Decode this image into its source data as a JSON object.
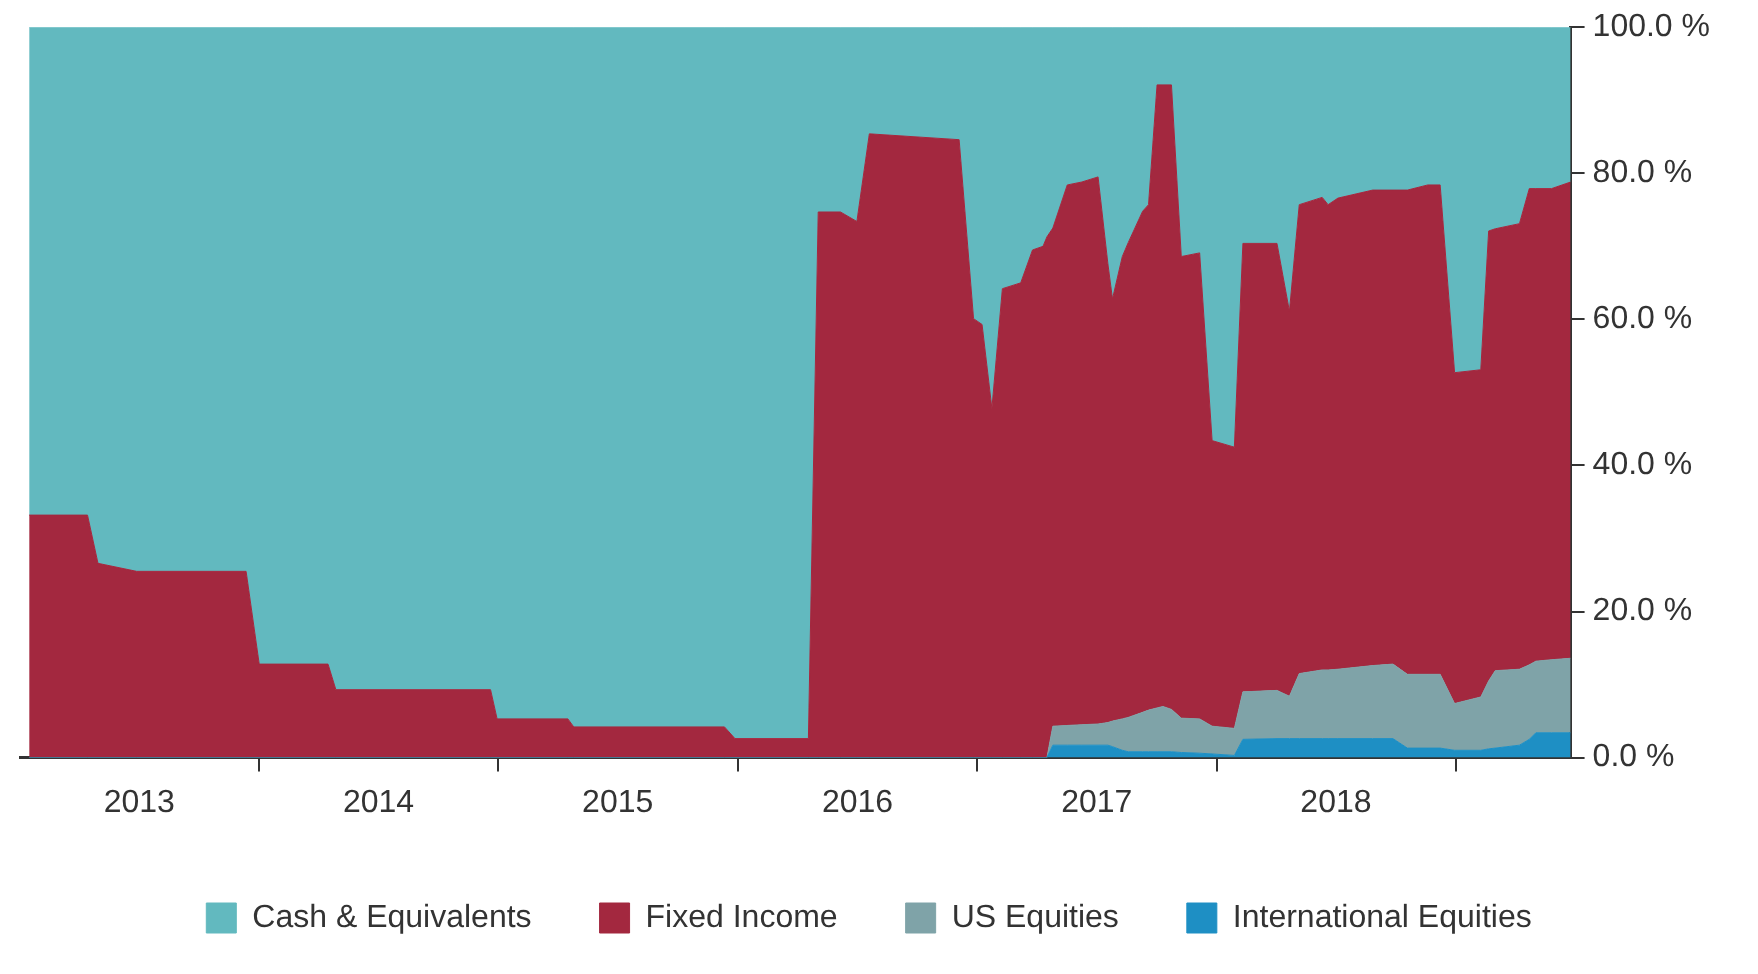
{
  "chart_data": {
    "type": "area",
    "stacked": true,
    "legend": "bottom",
    "grid": false,
    "x": [
      "2013-01-15",
      "2013-04-14",
      "2013-04-30",
      "2013-06-28",
      "2013-12-12",
      "2014-01-01",
      "2014-04-16",
      "2014-04-28",
      "2014-12-20",
      "2014-12-30",
      "2015-04-17",
      "2015-04-26",
      "2015-12-12",
      "2015-12-28",
      "2016-04-18",
      "2016-05-03",
      "2016-06-06",
      "2016-07-01",
      "2016-07-20",
      "2016-12-04",
      "2016-12-26",
      "2017-01-08",
      "2017-01-23",
      "2017-02-08",
      "2017-03-08",
      "2017-03-26",
      "2017-04-11",
      "2017-04-17",
      "2017-04-26",
      "2017-05-18",
      "2017-06-09",
      "2017-07-04",
      "2017-07-19",
      "2017-07-26",
      "2017-08-10",
      "2017-08-19",
      "2017-09-10",
      "2017-09-19",
      "2017-10-02",
      "2017-10-11",
      "2017-10-24",
      "2017-11-08",
      "2017-12-06",
      "2017-12-25",
      "2018-01-28",
      "2018-02-10",
      "2018-04-03",
      "2018-04-22",
      "2018-05-07",
      "2018-06-11",
      "2018-06-20",
      "2018-07-05",
      "2018-08-27",
      "2018-09-27",
      "2018-10-19",
      "2018-11-19",
      "2018-12-08",
      "2018-12-30",
      "2019-02-08",
      "2019-02-20",
      "2019-03-02",
      "2019-04-08",
      "2019-04-23",
      "2019-05-03",
      "2019-05-27",
      "2019-06-25"
    ],
    "series": [
      {
        "name": "International Equities",
        "color": "#1e8fc4",
        "values": [
          0,
          0,
          0,
          0,
          0,
          0,
          0,
          0,
          0,
          0,
          0,
          0,
          0,
          0,
          0,
          0,
          0,
          0,
          0,
          0,
          0,
          0,
          0,
          0,
          0,
          0,
          0,
          0,
          1.7,
          1.7,
          1.7,
          1.7,
          1.7,
          1.5,
          1.0,
          0.8,
          0.8,
          0.8,
          0.8,
          0.8,
          0.8,
          0.7,
          0.6,
          0.5,
          0.3,
          2.5,
          2.6,
          2.6,
          2.6,
          2.6,
          2.6,
          2.6,
          2.6,
          2.6,
          1.3,
          1.3,
          1.3,
          1.0,
          1.0,
          1.2,
          1.3,
          1.7,
          2.5,
          3.4,
          3.4,
          3.4
        ]
      },
      {
        "name": "US Equities",
        "color": "#7fa3a8",
        "values": [
          0,
          0,
          0,
          0,
          0,
          0,
          0,
          0,
          0,
          0,
          0,
          0,
          0,
          0,
          0,
          0,
          0,
          0,
          0,
          0,
          0,
          0,
          0,
          0,
          0,
          0,
          0,
          0,
          2.6,
          2.7,
          2.8,
          2.9,
          3.1,
          3.5,
          4.3,
          4.7,
          5.4,
          5.7,
          6.0,
          6.2,
          5.8,
          4.7,
          4.7,
          3.8,
          3.7,
          6.5,
          6.6,
          5.8,
          8.9,
          9.4,
          9.4,
          9.5,
          10.0,
          10.2,
          10.1,
          10.1,
          10.1,
          6.4,
          7.3,
          9.3,
          10.6,
          10.4,
          10.2,
          9.8,
          10.0,
          10.2
        ]
      },
      {
        "name": "Fixed Income",
        "color": "#a3283f",
        "values": [
          33.2,
          33.2,
          26.6,
          25.5,
          25.5,
          12.8,
          12.8,
          9.3,
          9.3,
          5.3,
          5.3,
          4.2,
          4.2,
          2.6,
          2.6,
          74.7,
          74.7,
          73.4,
          85.4,
          84.6,
          60.1,
          59.3,
          47.8,
          64.2,
          65.0,
          69.5,
          70.0,
          71.3,
          68.2,
          74.0,
          74.3,
          74.9,
          62.8,
          57.8,
          63.3,
          65.0,
          68.6,
          69.2,
          85.3,
          85.1,
          85.5,
          63.2,
          63.8,
          39.1,
          38.5,
          61.4,
          61.2,
          52.7,
          64.2,
          64.7,
          63.7,
          64.5,
          65.1,
          64.9,
          66.3,
          67.0,
          67.0,
          45.3,
          44.8,
          61.6,
          60.5,
          61.0,
          65.2,
          64.7,
          64.5,
          65.2
        ]
      },
      {
        "name": "Cash & Equivalents",
        "color": "#62b9bf",
        "values": [
          66.8,
          66.8,
          73.4,
          74.5,
          74.5,
          87.2,
          87.2,
          90.7,
          90.7,
          94.7,
          94.7,
          95.8,
          95.8,
          97.4,
          97.4,
          25.3,
          25.3,
          26.6,
          14.6,
          15.4,
          39.9,
          40.7,
          52.2,
          35.8,
          35.0,
          30.5,
          30.0,
          28.7,
          27.5,
          21.6,
          21.2,
          20.5,
          32.4,
          37.2,
          31.4,
          29.5,
          25.2,
          24.3,
          7.9,
          7.9,
          7.9,
          31.4,
          30.9,
          56.6,
          57.5,
          29.6,
          29.6,
          38.9,
          24.3,
          23.3,
          24.3,
          23.4,
          22.3,
          22.3,
          22.3,
          21.6,
          21.6,
          47.3,
          46.9,
          27.9,
          27.6,
          26.9,
          22.1,
          22.1,
          22.1,
          21.2
        ]
      }
    ],
    "xlim": [
      "2013-01-01",
      "2019-06-25"
    ],
    "xticks": [
      {
        "value": "2013-07-02",
        "label": "2013"
      },
      {
        "value": "2014-01-01",
        "label": null
      },
      {
        "value": "2014-07-02",
        "label": "2014"
      },
      {
        "value": "2015-01-01",
        "label": null
      },
      {
        "value": "2015-07-02",
        "label": "2015"
      },
      {
        "value": "2016-01-01",
        "label": null
      },
      {
        "value": "2016-07-02",
        "label": "2016"
      },
      {
        "value": "2017-01-01",
        "label": null
      },
      {
        "value": "2017-07-02",
        "label": "2017"
      },
      {
        "value": "2018-01-01",
        "label": null
      },
      {
        "value": "2018-07-02",
        "label": "2018"
      },
      {
        "value": "2019-01-01",
        "label": null
      }
    ],
    "ylim": [
      0,
      100
    ],
    "yticks": [
      {
        "value": 0,
        "label": "0.0 %"
      },
      {
        "value": 20,
        "label": "20.0 %"
      },
      {
        "value": 40,
        "label": "40.0 %"
      },
      {
        "value": 60,
        "label": "60.0 %"
      },
      {
        "value": 80,
        "label": "80.0 %"
      },
      {
        "value": 100,
        "label": "100.0 %"
      }
    ]
  }
}
